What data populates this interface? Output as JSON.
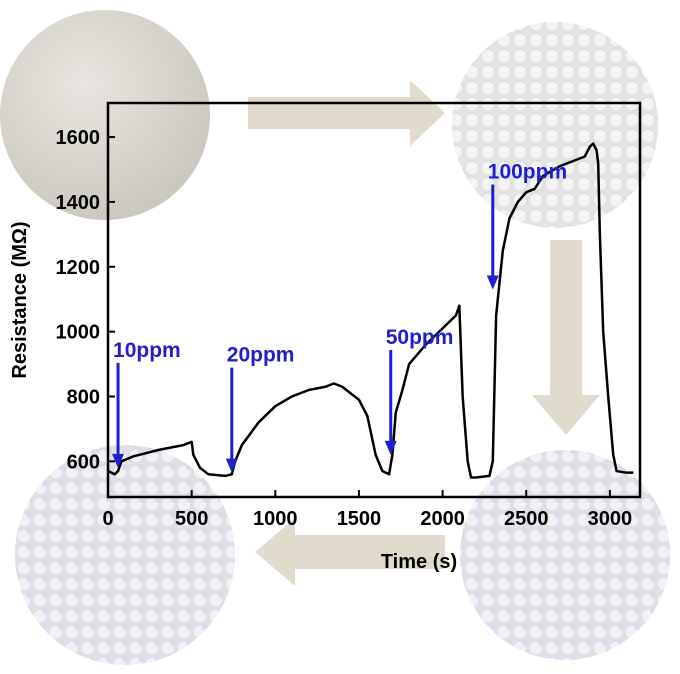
{
  "chart_data": {
    "type": "line",
    "xlabel": "Time (s)",
    "ylabel": "Resistance  (MΩ)",
    "xlim": [
      0,
      3180
    ],
    "ylim": [
      490,
      1705
    ],
    "xticks": [
      0,
      500,
      1000,
      1500,
      2000,
      2500,
      3000
    ],
    "yticks": [
      600,
      800,
      1000,
      1200,
      1400,
      1600
    ],
    "x": [
      0,
      40,
      60,
      80,
      150,
      300,
      450,
      500,
      510,
      550,
      600,
      700,
      740,
      760,
      800,
      900,
      1000,
      1100,
      1200,
      1300,
      1350,
      1400,
      1500,
      1550,
      1600,
      1640,
      1680,
      1700,
      1720,
      1760,
      1800,
      1900,
      2000,
      2080,
      2100,
      2120,
      2150,
      2170,
      2200,
      2280,
      2300,
      2320,
      2360,
      2400,
      2450,
      2500,
      2550,
      2600,
      2700,
      2800,
      2850,
      2880,
      2900,
      2920,
      2930,
      2940,
      2960,
      2990,
      3020,
      3040,
      3100,
      3140
    ],
    "series": [
      {
        "color": "#000000",
        "values": [
          570,
          560,
          570,
          600,
          615,
          635,
          650,
          660,
          620,
          580,
          560,
          555,
          560,
          600,
          650,
          720,
          770,
          800,
          820,
          830,
          840,
          830,
          790,
          740,
          620,
          570,
          560,
          620,
          750,
          820,
          900,
          960,
          1010,
          1050,
          1080,
          800,
          600,
          550,
          550,
          555,
          600,
          1050,
          1250,
          1350,
          1400,
          1430,
          1440,
          1480,
          1510,
          1530,
          1540,
          1570,
          1580,
          1560,
          1520,
          1300,
          1000,
          800,
          620,
          570,
          565,
          565
        ]
      }
    ],
    "annotations": [
      {
        "text": "10ppm",
        "x": 60,
        "y": 580,
        "color": "#1f1fcf"
      },
      {
        "text": "20ppm",
        "x": 740,
        "y": 565,
        "color": "#1f1fcf"
      },
      {
        "text": "50ppm",
        "x": 1690,
        "y": 620,
        "color": "#1f1fcf"
      },
      {
        "text": "100ppm",
        "x": 2300,
        "y": 1130,
        "color": "#1f1fcf"
      }
    ]
  }
}
